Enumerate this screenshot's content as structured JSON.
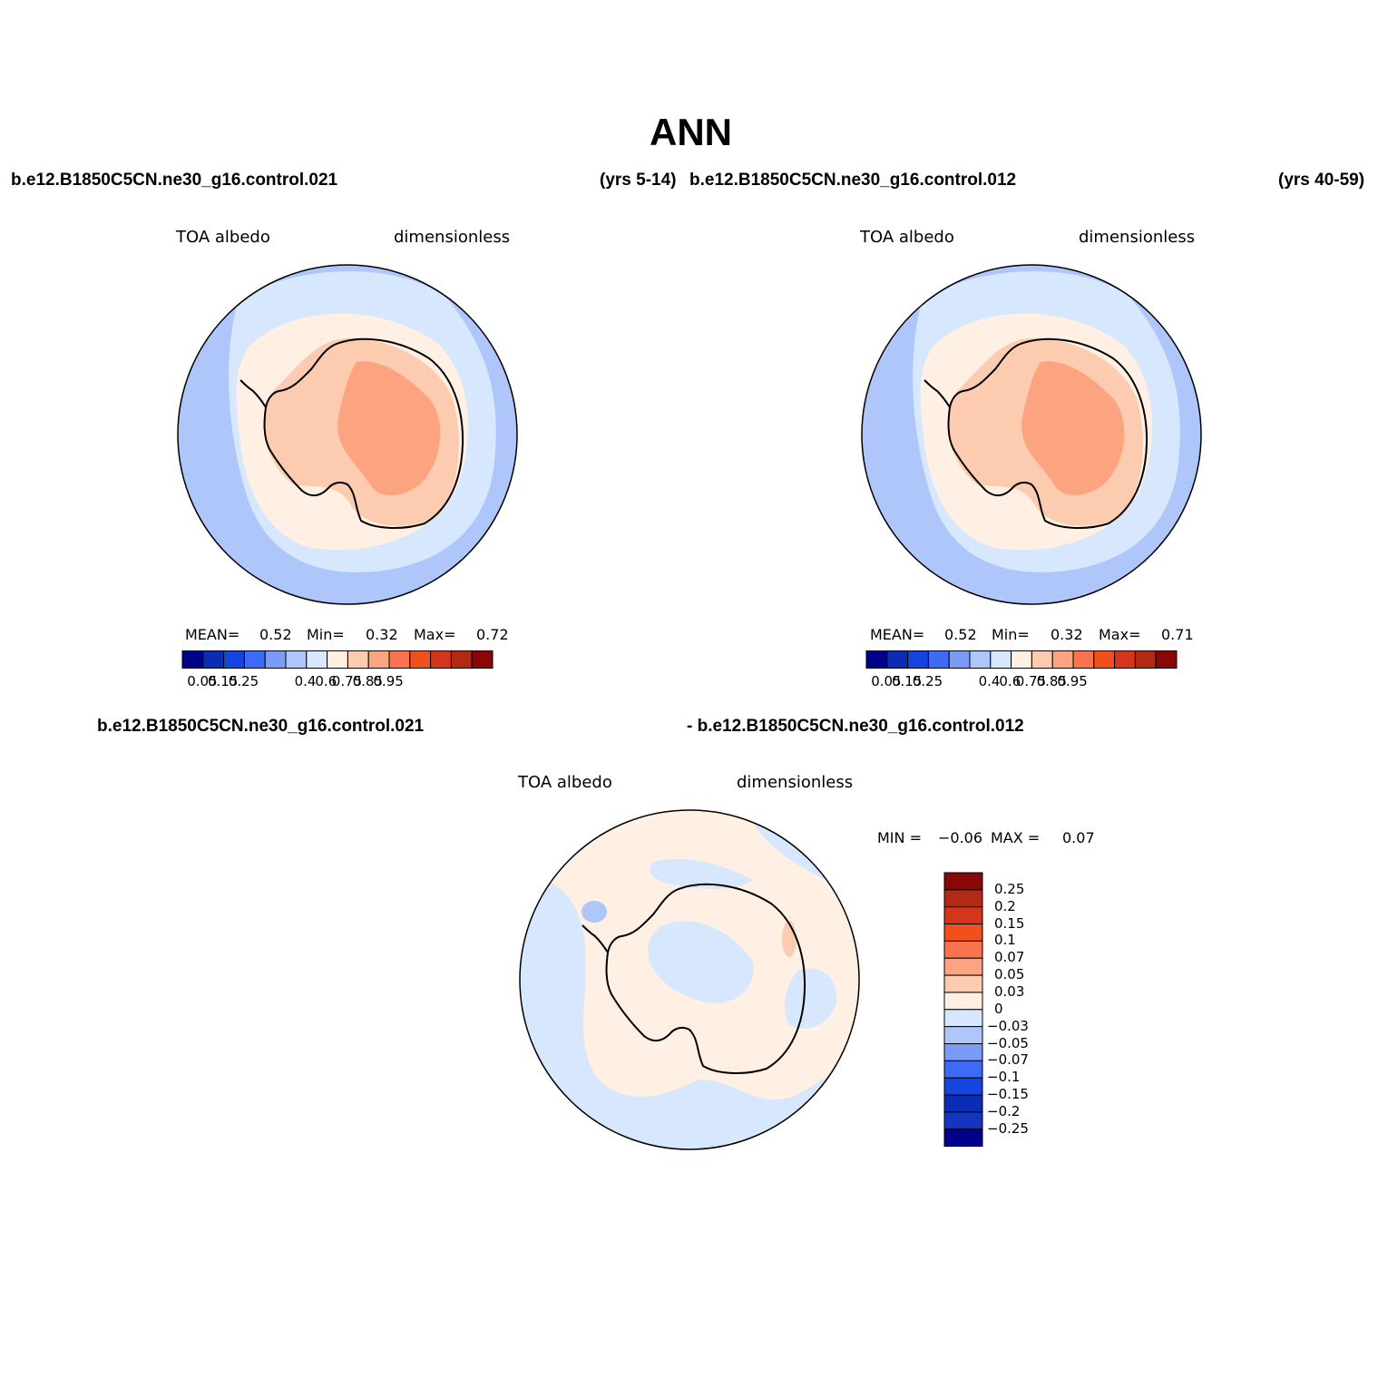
{
  "title": "ANN",
  "header": {
    "case1": "b.e12.B1850C5CN.ne30_g16.control.021",
    "years1": "(yrs 5-14)",
    "case2": "b.e12.B1850C5CN.ne30_g16.control.012",
    "years2": "(yrs 40-59)"
  },
  "panels": [
    {
      "variable": "TOA albedo",
      "units": "dimensionless",
      "mean_label": "MEAN=",
      "mean": "0.52",
      "min_label": "Min=",
      "min": "0.32",
      "max_label": "Max=",
      "max": "0.72"
    },
    {
      "variable": "TOA albedo",
      "units": "dimensionless",
      "mean_label": "MEAN=",
      "mean": "0.52",
      "min_label": "Min=",
      "min": "0.32",
      "max_label": "Max=",
      "max": "0.71"
    }
  ],
  "diff_panel": {
    "case_a": "b.e12.B1850C5CN.ne30_g16.control.021",
    "case_b": "- b.e12.B1850C5CN.ne30_g16.control.012",
    "variable": "TOA albedo",
    "units": "dimensionless",
    "min_label": "MIN =",
    "min": "−0.06",
    "max_label": "MAX =",
    "max": "0.07"
  },
  "colorbar_abs": {
    "colors": [
      "#00008b",
      "#0b2db5",
      "#1545e0",
      "#3d6bf5",
      "#7a9cf7",
      "#afc6fa",
      "#d7e7fd",
      "#fff0e3",
      "#fdcbb0",
      "#fba47f",
      "#fa7350",
      "#f14f1c",
      "#d5351b",
      "#b22a13",
      "#8a0707"
    ],
    "tick_labels": [
      "0.05",
      "0.15",
      "0.25",
      "0.4",
      "0.6",
      "0.75",
      "0.85",
      "0.95"
    ]
  },
  "colorbar_diff": {
    "colors": [
      "#8a0707",
      "#b22a13",
      "#d5351b",
      "#f14f1c",
      "#fa7350",
      "#fba47f",
      "#fdcbb0",
      "#fff0e3",
      "#d7e7fd",
      "#afc6fa",
      "#7a9cf7",
      "#3d6bf5",
      "#1545e0",
      "#0b2db5",
      "#1535c0",
      "#00008b"
    ],
    "tick_labels": [
      "0.25",
      "0.2",
      "0.15",
      "0.1",
      "0.07",
      "0.05",
      "0.03",
      "0",
      "−0.03",
      "−0.05",
      "−0.07",
      "−0.1",
      "−0.15",
      "−0.2",
      "−0.25"
    ]
  }
}
